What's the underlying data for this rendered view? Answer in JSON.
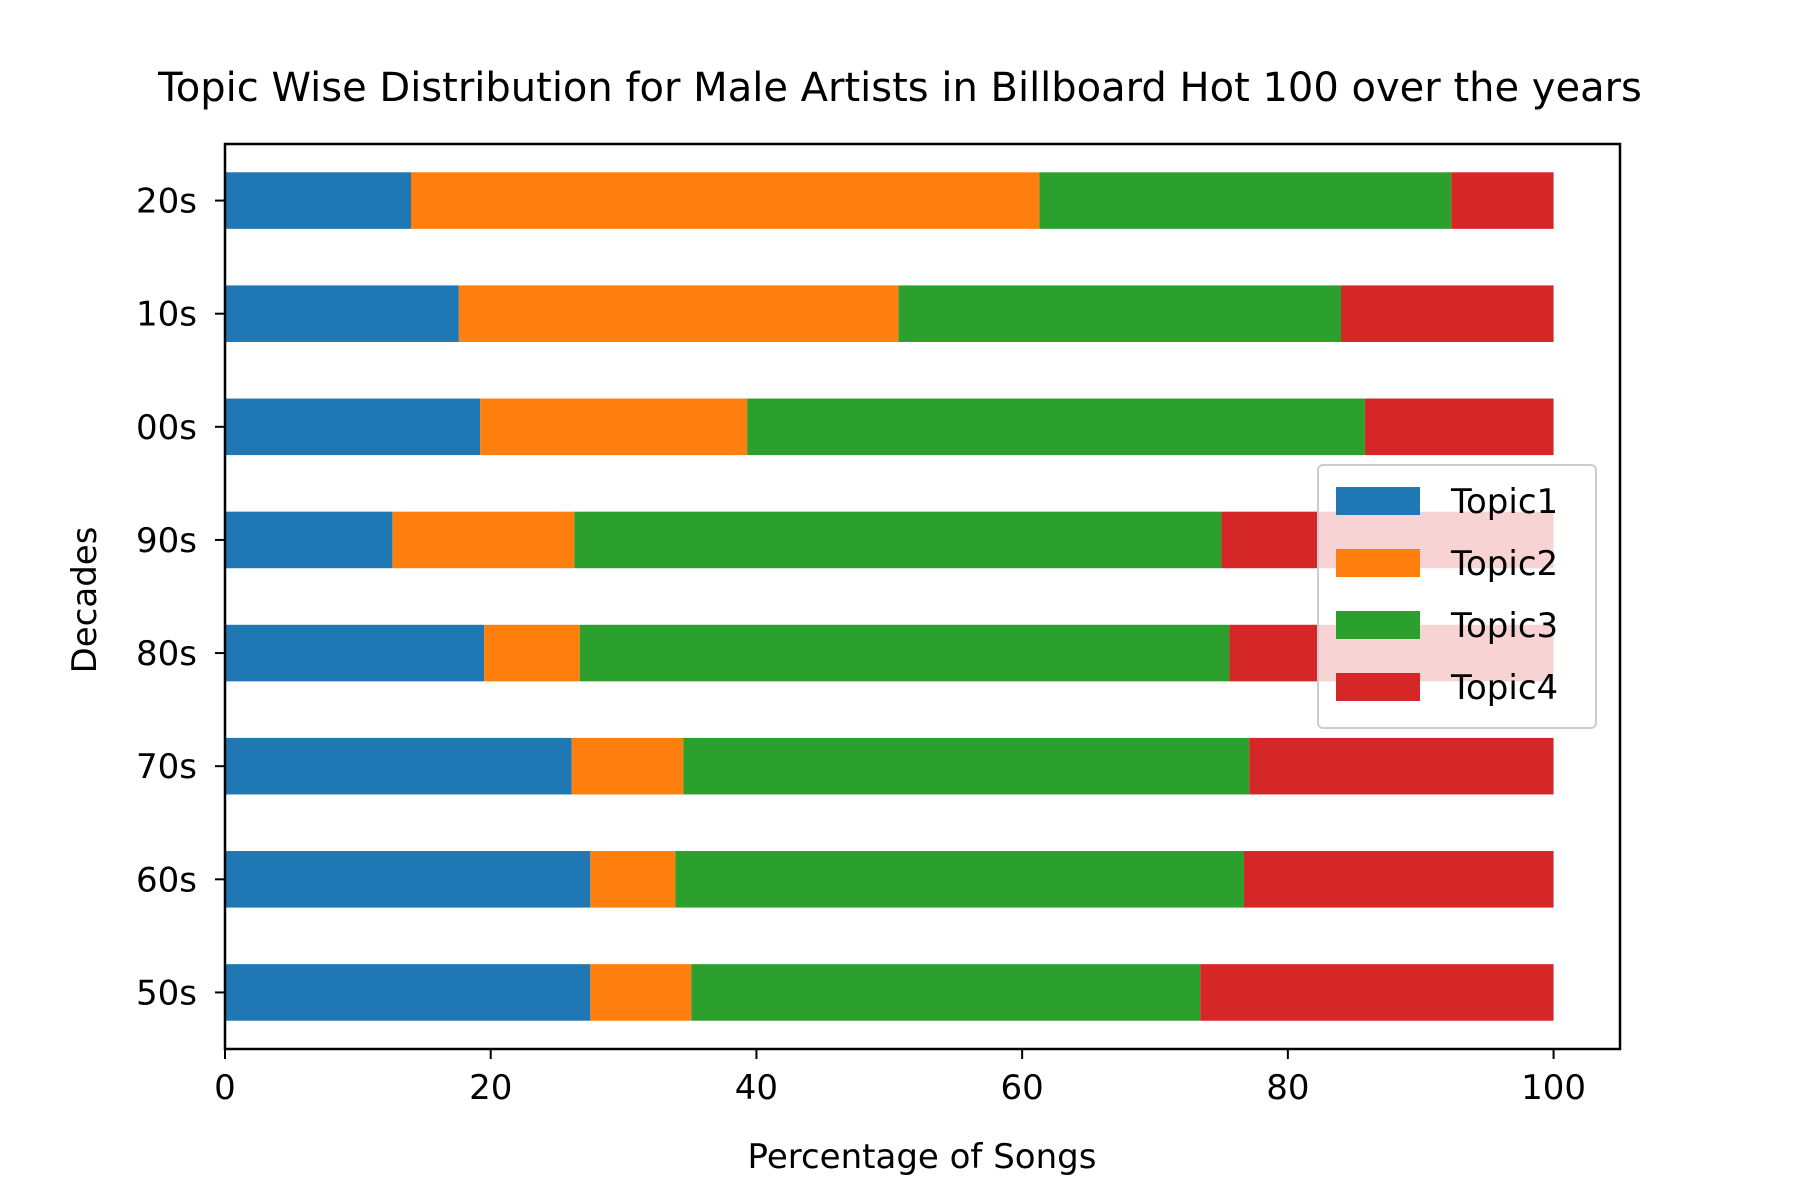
{
  "chart_data": {
    "type": "bar",
    "orientation": "horizontal",
    "stacked": true,
    "title": "Topic Wise Distribution for Male Artists in Billboard Hot 100 over the years",
    "xlabel": "Percentage of Songs",
    "ylabel": "Decades",
    "xlim": [
      0,
      105
    ],
    "x_ticks": [
      0,
      20,
      40,
      60,
      80,
      100
    ],
    "categories": [
      "50s",
      "60s",
      "70s",
      "80s",
      "90s",
      "00s",
      "10s",
      "20s"
    ],
    "series": [
      {
        "name": "Topic1",
        "color": "#1f77b4",
        "values": [
          27.5,
          27.5,
          26.1,
          19.5,
          12.6,
          19.2,
          17.6,
          14.0
        ]
      },
      {
        "name": "Topic2",
        "color": "#ff7f0e",
        "values": [
          7.6,
          6.4,
          8.4,
          7.2,
          13.7,
          20.1,
          33.1,
          47.3
        ]
      },
      {
        "name": "Topic3",
        "color": "#2ca02c",
        "values": [
          38.3,
          42.8,
          42.6,
          48.9,
          48.7,
          46.5,
          33.3,
          31.0
        ]
      },
      {
        "name": "Topic4",
        "color": "#d62728",
        "values": [
          26.6,
          23.3,
          22.9,
          24.4,
          25.0,
          14.2,
          16.0,
          7.7
        ]
      }
    ],
    "grid": false,
    "legend_position": "center-right"
  }
}
